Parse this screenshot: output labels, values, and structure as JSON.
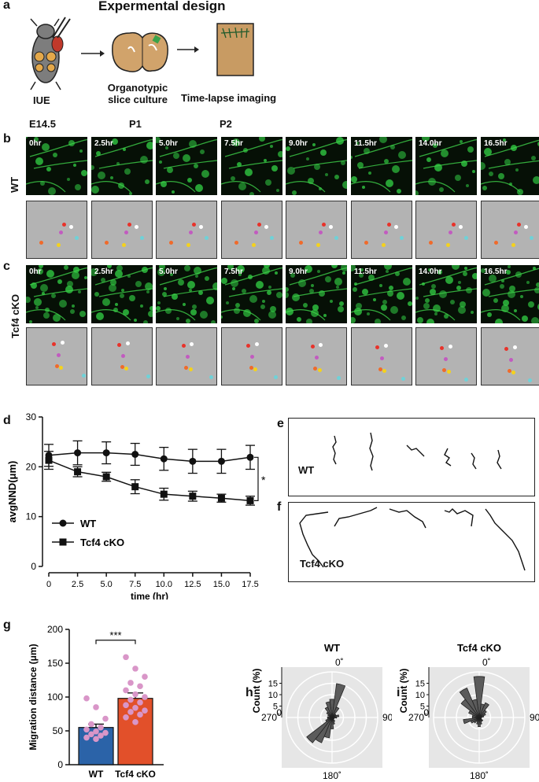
{
  "panel_a": {
    "label": "a",
    "title": "Expermental design",
    "steps": [
      {
        "name": "IUE",
        "time": "E14.5"
      },
      {
        "name": "Organotypic\nslice culture",
        "time": "P1"
      },
      {
        "name": "Time-lapse imaging",
        "time": "P2"
      }
    ]
  },
  "panel_b": {
    "label": "b",
    "row_label": "WT"
  },
  "panel_c": {
    "label": "c",
    "row_label": "Tcf4 cKO"
  },
  "timepoints": [
    "0hr",
    "2.5hr",
    "5.0hr",
    "7.5hr",
    "9.0hr",
    "11.5hr",
    "14.0hr",
    "16.5hr"
  ],
  "dot_colors": {
    "red": "#e8322a",
    "white": "#ffffff",
    "magenta": "#c25bc0",
    "cyan": "#6fd2d8",
    "orange": "#f06a2a",
    "yellow": "#f4d21c"
  },
  "panel_d": {
    "label": "d",
    "significance": "*"
  },
  "panel_e": {
    "label": "e",
    "group": "WT"
  },
  "panel_f": {
    "label": "f",
    "group": "Tcf4 cKO"
  },
  "panel_g": {
    "label": "g",
    "significance": "***"
  },
  "panel_h": {
    "label": "h"
  },
  "panel_i": {
    "label": "i"
  },
  "chart_data": [
    {
      "type": "line",
      "panel": "d",
      "xlabel": "time (hr)",
      "ylabel": "avgNND(μm)",
      "xlim": [
        0,
        17.5
      ],
      "ylim": [
        0,
        30
      ],
      "xticks": [
        "0",
        "2.5",
        "5.0",
        "7.5",
        "10.0",
        "12.5",
        "15.0",
        "17.5"
      ],
      "yticks": [
        "0",
        "10",
        "20",
        "30"
      ],
      "x": [
        0,
        2.5,
        5.0,
        7.5,
        10.0,
        12.5,
        15.0,
        17.5
      ],
      "series": [
        {
          "name": "WT",
          "marker": "circle",
          "values": [
            22.3,
            22.8,
            22.8,
            22.5,
            21.6,
            21.1,
            21.1,
            21.9
          ],
          "errors": [
            2.2,
            2.4,
            2.2,
            2.2,
            2.3,
            2.4,
            2.4,
            2.4
          ]
        },
        {
          "name": "Tcf4 cKO",
          "marker": "square",
          "values": [
            21.3,
            19.0,
            18.0,
            16.0,
            14.5,
            14.1,
            13.7,
            13.2
          ],
          "errors": [
            1.8,
            1.0,
            0.9,
            1.4,
            1.2,
            1.0,
            0.8,
            0.9
          ]
        }
      ],
      "legend": "bottom-left"
    },
    {
      "type": "bar",
      "panel": "g",
      "ylabel": "Migration distance (μm)",
      "categories": [
        "WT",
        "Tcf4 cKO"
      ],
      "values": [
        55,
        98
      ],
      "errors": [
        5,
        8
      ],
      "colors": [
        "#2b63a8",
        "#e2502a"
      ],
      "ylim": [
        0,
        200
      ],
      "yticks": [
        "0",
        "50",
        "100",
        "150",
        "200"
      ],
      "points": [
        [
          98,
          85,
          68,
          60,
          55,
          52,
          49,
          47,
          45,
          43,
          40,
          38
        ],
        [
          159,
          142,
          130,
          121,
          116,
          110,
          104,
          100,
          96,
          92,
          88,
          84,
          80,
          78,
          74,
          70,
          63
        ]
      ]
    },
    {
      "type": "polar_histogram",
      "panel": "h",
      "title": "WT",
      "rlabel": "Count (%)",
      "rticks": [
        "5",
        "10",
        "15"
      ],
      "rmax": 20,
      "angle_labels": [
        "0˚",
        "90˚",
        "180˚",
        "270˚"
      ],
      "bins_deg": [
        0,
        15,
        30,
        45,
        60,
        75,
        90,
        105,
        120,
        135,
        150,
        165,
        180,
        195,
        210,
        225,
        240,
        255,
        270,
        285,
        300,
        315,
        330,
        345
      ],
      "values": [
        8,
        15,
        5,
        2,
        2,
        3,
        2,
        1,
        1,
        1,
        2,
        3,
        5,
        9,
        12,
        14,
        3,
        2,
        2,
        1,
        2,
        3,
        5,
        7
      ]
    },
    {
      "type": "polar_histogram",
      "panel": "i",
      "title": "Tcf4 cKO",
      "rlabel": "Count (%)",
      "rticks": [
        "5",
        "10",
        "15"
      ],
      "rmax": 20,
      "angle_labels": [
        "0˚",
        "90˚",
        "180˚",
        "270˚"
      ],
      "bins_deg": [
        0,
        15,
        30,
        45,
        60,
        75,
        90,
        105,
        120,
        135,
        150,
        165,
        180,
        195,
        210,
        225,
        240,
        255,
        270,
        285,
        300,
        315,
        330,
        345
      ],
      "values": [
        18,
        6,
        7,
        4,
        3,
        2,
        1,
        1,
        1,
        2,
        2,
        3,
        4,
        3,
        2,
        3,
        4,
        7,
        3,
        3,
        5,
        10,
        14,
        8
      ]
    }
  ]
}
